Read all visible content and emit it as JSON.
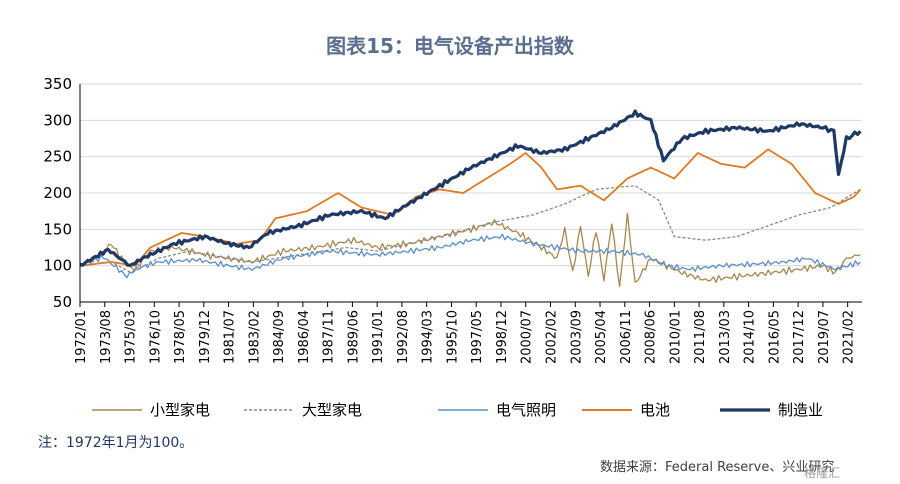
{
  "title": "图表15：电气设备产出指数",
  "note": "注：1972年1月为100。",
  "source": "数据来源：Federal Reserve、兴业研究",
  "watermark": "格隆汇",
  "colors": {
    "small": "#a8874f",
    "large": "#8a8a8a",
    "lighting": "#5b8fc9",
    "battery": "#e07a24",
    "manufacturing": "#1f3864",
    "axis": "#000000",
    "grid": "#d9d9d9"
  },
  "chart_data": {
    "type": "line",
    "ylim": [
      50,
      350
    ],
    "yticks": [
      50,
      100,
      150,
      200,
      250,
      300,
      350
    ],
    "xlim": [
      "1972-01",
      "2022-01"
    ],
    "xticks": [
      "1972/01",
      "1973/08",
      "1975/03",
      "1976/10",
      "1978/05",
      "1979/12",
      "1981/07",
      "1983/02",
      "1984/09",
      "1986/04",
      "1987/11",
      "1989/06",
      "1991/01",
      "1992/08",
      "1994/03",
      "1995/10",
      "1997/05",
      "1998/12",
      "2000/07",
      "2002/02",
      "2003/09",
      "2005/04",
      "2006/11",
      "2008/06",
      "2010/01",
      "2011/08",
      "2013/03",
      "2014/10",
      "2016/05",
      "2017/12",
      "2019/07",
      "2021/02"
    ],
    "legend_position": "bottom",
    "grid": true,
    "series": [
      {
        "name": "小型家电",
        "key": "small",
        "style": "solid",
        "x": [
          1972.0,
          1973.0,
          1974.0,
          1975.0,
          1975.5,
          1976.5,
          1978.0,
          1980.0,
          1981.5,
          1983.0,
          1985.0,
          1987.0,
          1989.5,
          1991.0,
          1993.0,
          1995.0,
          1997.0,
          1998.5,
          2000.0,
          2001.5,
          2002.5,
          2003.0,
          2003.5,
          2004.0,
          2004.5,
          2005.0,
          2005.5,
          2006.0,
          2006.5,
          2007.0,
          2007.5,
          2008.5,
          2009.5,
          2010.5,
          2012.0,
          2014.0,
          2016.0,
          2018.0,
          2019.5,
          2020.3,
          2021.0,
          2021.9
        ],
        "y": [
          100,
          110,
          130,
          100,
          95,
          120,
          125,
          115,
          110,
          105,
          120,
          125,
          135,
          125,
          130,
          140,
          150,
          160,
          145,
          125,
          110,
          150,
          90,
          155,
          85,
          150,
          80,
          160,
          70,
          170,
          75,
          110,
          100,
          90,
          80,
          85,
          90,
          95,
          100,
          90,
          110,
          115
        ]
      },
      {
        "name": "大型家电",
        "key": "large",
        "style": "dashed",
        "x": [
          1972.0,
          1974.0,
          1975.3,
          1977.0,
          1979.0,
          1981.5,
          1983.0,
          1986.0,
          1989.0,
          1991.0,
          1993.0,
          1996.0,
          1998.5,
          2001.0,
          2003.0,
          2005.0,
          2007.5,
          2009.0,
          2010.0,
          2012.0,
          2014.0,
          2016.0,
          2018.0,
          2020.0,
          2021.5,
          2021.9
        ],
        "y": [
          100,
          105,
          90,
          110,
          120,
          110,
          105,
          115,
          125,
          120,
          130,
          145,
          160,
          170,
          185,
          205,
          210,
          190,
          140,
          135,
          140,
          155,
          170,
          180,
          200,
          205
        ]
      },
      {
        "name": "电气照明",
        "key": "lighting",
        "style": "solid",
        "x": [
          1972.0,
          1973.5,
          1975.0,
          1975.5,
          1977.0,
          1979.5,
          1981.5,
          1983.0,
          1985.0,
          1988.0,
          1991.0,
          1993.0,
          1995.0,
          1997.0,
          1999.0,
          2001.0,
          2002.5,
          2004.0,
          2006.0,
          2008.0,
          2009.5,
          2011.0,
          2013.0,
          2015.0,
          2017.0,
          2018.5,
          2020.3,
          2021.9
        ],
        "y": [
          100,
          112,
          85,
          95,
          105,
          108,
          100,
          95,
          110,
          120,
          115,
          120,
          125,
          135,
          140,
          130,
          125,
          120,
          120,
          115,
          100,
          95,
          100,
          102,
          105,
          110,
          95,
          105
        ]
      },
      {
        "name": "电池",
        "key": "battery",
        "style": "solid",
        "x": [
          1972.0,
          1974.0,
          1975.5,
          1976.5,
          1978.5,
          1980.0,
          1982.0,
          1983.5,
          1984.5,
          1986.5,
          1988.5,
          1990.0,
          1992.0,
          1993.5,
          1995.0,
          1996.5,
          1998.0,
          1999.5,
          2000.5,
          2001.5,
          2002.5,
          2004.0,
          2005.5,
          2007.0,
          2008.5,
          2010.0,
          2011.5,
          2013.0,
          2014.5,
          2016.0,
          2017.5,
          2019.0,
          2020.5,
          2021.5,
          2021.9
        ],
        "y": [
          100,
          105,
          100,
          125,
          145,
          140,
          130,
          135,
          165,
          175,
          200,
          180,
          170,
          195,
          205,
          200,
          220,
          240,
          255,
          235,
          205,
          210,
          190,
          220,
          235,
          220,
          255,
          240,
          235,
          260,
          240,
          200,
          185,
          195,
          205
        ]
      },
      {
        "name": "制造业",
        "key": "manufacturing",
        "style": "solid",
        "x": [
          1972.0,
          1973.8,
          1975.2,
          1976.0,
          1978.0,
          1980.0,
          1981.5,
          1982.8,
          1984.0,
          1986.0,
          1988.0,
          1990.0,
          1991.5,
          1993.0,
          1995.0,
          1997.0,
          1998.5,
          2000.0,
          2001.5,
          2003.0,
          2004.5,
          2006.0,
          2007.5,
          2008.5,
          2009.3,
          2010.5,
          2012.0,
          2014.0,
          2016.0,
          2018.0,
          2019.5,
          2020.2,
          2020.5,
          2021.0,
          2021.9
        ],
        "y": [
          100,
          122,
          100,
          110,
          130,
          140,
          130,
          125,
          145,
          155,
          170,
          175,
          165,
          185,
          210,
          235,
          250,
          265,
          255,
          260,
          275,
          290,
          310,
          300,
          245,
          275,
          285,
          290,
          285,
          295,
          290,
          285,
          225,
          275,
          285
        ]
      }
    ]
  }
}
